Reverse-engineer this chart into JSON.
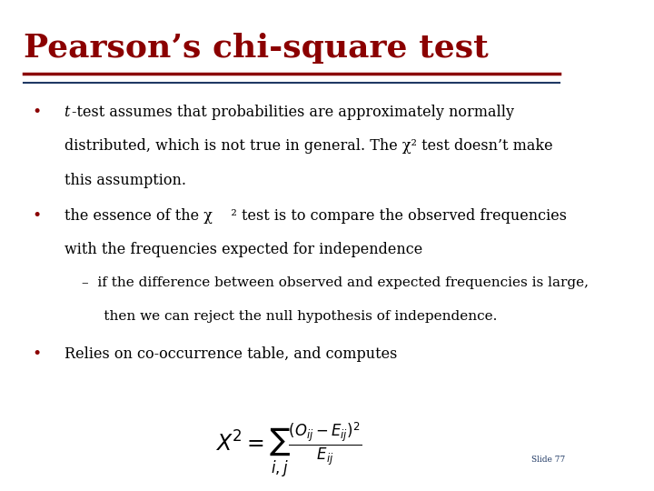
{
  "title": "Pearson’s chi-square test",
  "title_color": "#8B0000",
  "title_fontsize": 26,
  "title_font": "serif",
  "bg_color": "#FFFFFF",
  "line1_color": "#8B0000",
  "line2_color": "#1F3864",
  "slide_number": "Slide 77",
  "bullet_color": "#8B0000",
  "text_color": "#000000",
  "sub_bullet1": "–  if the difference between observed and expected frequencies is large,",
  "sub_bullet2": "     then we can reject the null hypothesis of independence.",
  "bullet3": "Relies on co-occurrence table, and computes",
  "formula": "$X^2 = \\sum_{i,j} \\frac{(O_{ij} - E_{ij})^2}{E_{ij}}$"
}
